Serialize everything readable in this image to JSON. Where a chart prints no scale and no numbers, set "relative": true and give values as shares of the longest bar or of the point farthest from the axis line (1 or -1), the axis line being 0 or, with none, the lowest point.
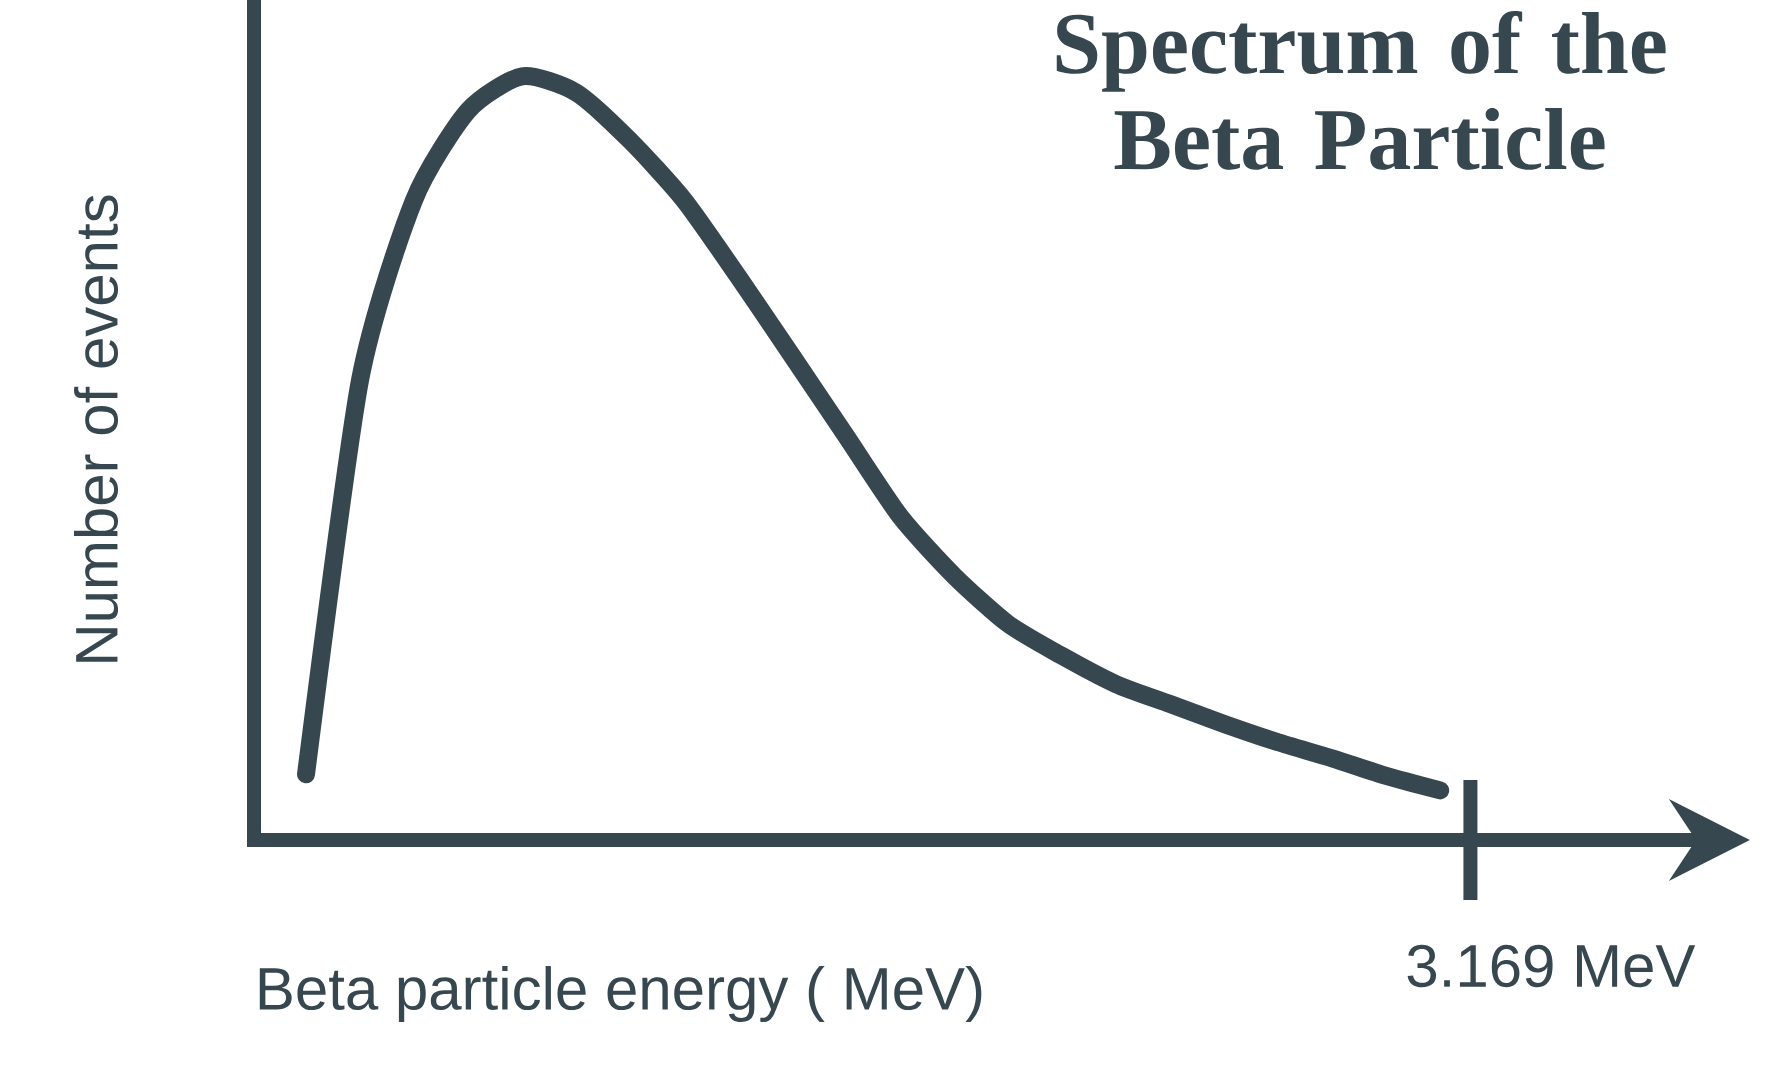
{
  "chart_data": {
    "type": "line",
    "title": "Spectrum of the Beta Particle",
    "xlabel": "Beta particle energy ( MeV)",
    "ylabel": "Number of events",
    "relative": true,
    "marker": "none",
    "line_style": "solid",
    "annotations": [
      "3.169 MeV"
    ],
    "categories": [
      null,
      null,
      null,
      null,
      null,
      null,
      null,
      null,
      null,
      null,
      null,
      null,
      null,
      null,
      null,
      null,
      null,
      null,
      null,
      null,
      null,
      null
    ],
    "series": [
      {
        "color": "#37474f",
        "values": [
          0.086,
          0.602,
          0.838,
          0.955,
          1.0,
          0.979,
          0.916,
          0.838,
          0.738,
          0.634,
          0.529,
          0.424,
          0.346,
          0.283,
          0.241,
          0.204,
          0.178,
          0.152,
          0.128,
          0.107,
          0.084,
          0.065
        ]
      }
    ]
  }
}
